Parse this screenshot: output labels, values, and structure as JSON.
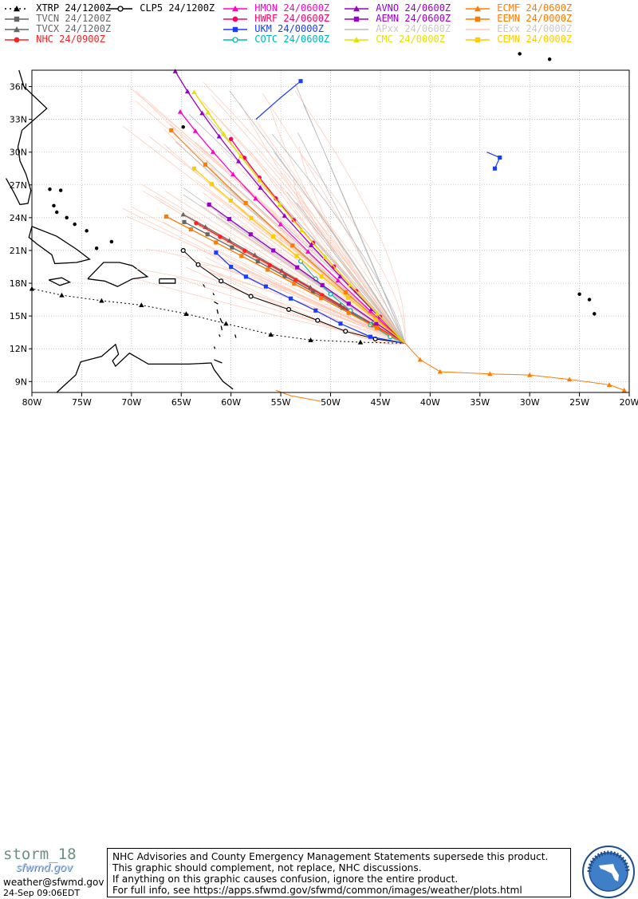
{
  "legend": [
    {
      "label": "XTRP 24/1200Z",
      "color": "#000000",
      "marker": "triangle",
      "dash": "2,4"
    },
    {
      "label": "TVCN 24/1200Z",
      "color": "#666666",
      "marker": "square",
      "dash": ""
    },
    {
      "label": "TVCX 24/1200Z",
      "color": "#666666",
      "marker": "triangle",
      "dash": ""
    },
    {
      "label": "NHC 24/0900Z",
      "color": "#ff2020",
      "marker": "circle",
      "dash": ""
    },
    {
      "label": "CLP5 24/1200Z",
      "color": "#000000",
      "marker": "ocircle",
      "dash": ""
    },
    {
      "label": "HMON 24/0600Z",
      "color": "#ff00cc",
      "marker": "triangle",
      "dash": ""
    },
    {
      "label": "HWRF 24/0600Z",
      "color": "#ff0066",
      "marker": "circle",
      "dash": ""
    },
    {
      "label": "UKM 24/0000Z",
      "color": "#1a3cff",
      "marker": "square",
      "dash": ""
    },
    {
      "label": "COTC 24/0600Z",
      "color": "#00b8b8",
      "marker": "ocircle",
      "dash": ""
    },
    {
      "label": "AVNO 24/0600Z",
      "color": "#9900cc",
      "marker": "triangle",
      "dash": ""
    },
    {
      "label": "AEMN 24/0600Z",
      "color": "#9900cc",
      "marker": "square",
      "dash": ""
    },
    {
      "label": "APxx 24/0600Z",
      "color": "#bbbbbb",
      "marker": "none",
      "dash": ""
    },
    {
      "label": "CMC 24/0000Z",
      "color": "#e8e000",
      "marker": "triangle",
      "dash": ""
    },
    {
      "label": "ECMF 24/0600Z",
      "color": "#ff7a00",
      "marker": "triangle",
      "dash": ""
    },
    {
      "label": "EEMN 24/0000Z",
      "color": "#ff7a00",
      "marker": "square",
      "dash": ""
    },
    {
      "label": "EExx 24/0000Z",
      "color": "#ffc8b4",
      "marker": "none",
      "dash": ""
    },
    {
      "label": "CEMN 24/0000Z",
      "color": "#ffcc00",
      "marker": "square",
      "dash": ""
    }
  ],
  "map": {
    "lon_ticks": [
      "80W",
      "75W",
      "70W",
      "65W",
      "60W",
      "55W",
      "50W",
      "45W",
      "40W",
      "35W",
      "30W",
      "25W",
      "20W"
    ],
    "lat_ticks": [
      "9N",
      "12N",
      "15N",
      "18N",
      "21N",
      "24N",
      "27N",
      "30N",
      "33N",
      "36N"
    ],
    "lon_range": [
      -80,
      -20
    ],
    "lat_range": [
      8,
      37.5
    ],
    "storm_center": {
      "lon": -42.5,
      "lat": 12.5
    }
  },
  "footer": {
    "storm_name": "storm_18",
    "watermark": "sfwmd.gov",
    "email": "weather@sfwmd.gov",
    "timestamp": "24-Sep 09:06EDT",
    "disclaimer": [
      "NHC Advisories and County Emergency Management Statements supersede this product.",
      "This graphic should complement, not replace, NHC discussions.",
      "If anything on this graphic causes confusion, ignore the entire product.",
      "For full info, see  https://apps.sfwmd.gov/sfwmd/common/images/weather/plots.html"
    ]
  },
  "colors": {
    "land": "#000000",
    "grid": "#b0b0b0",
    "frame": "#000000"
  }
}
